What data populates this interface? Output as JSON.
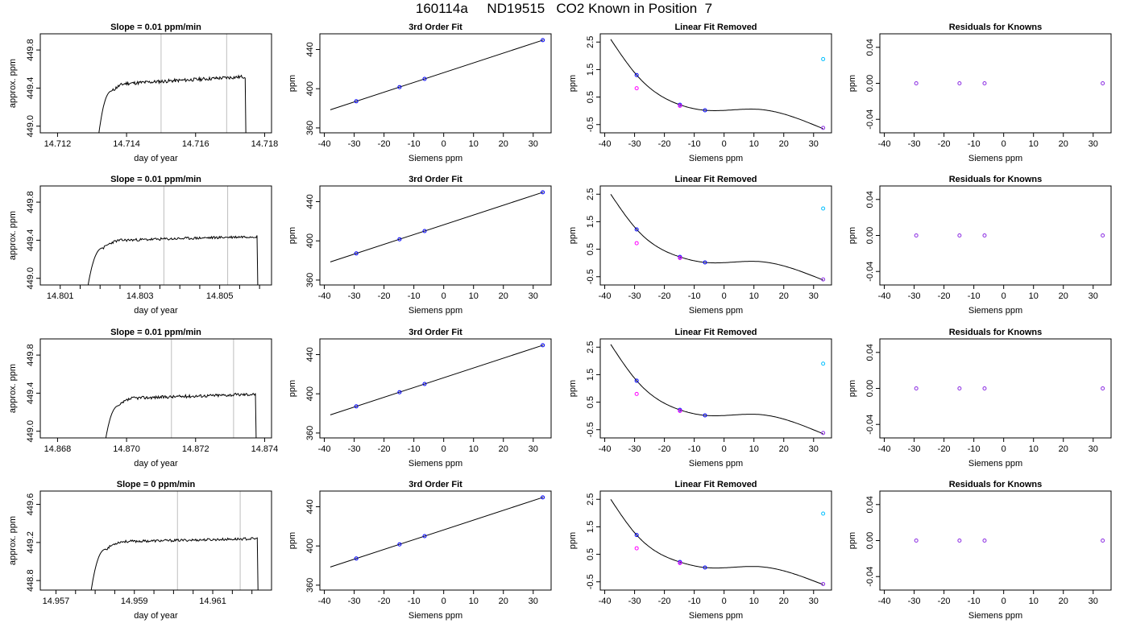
{
  "page": {
    "title": "160114a     ND19515   CO2 Known in Position  7"
  },
  "colors": {
    "line": "#000000",
    "frame": "#000000",
    "vline": "#bebebe",
    "point_blue": "#0000ff",
    "point_magenta": "#ff00ff",
    "point_cyan": "#00bfff",
    "point_purple": "#8a2be2"
  },
  "chart_data": [
    {
      "type": "line",
      "title": "Slope =  0.01  ppm/min",
      "xlabel": "day of year",
      "ylabel": "approx. ppm",
      "xlim": [
        14.7115,
        14.7182
      ],
      "ylim": [
        448.93,
        449.97
      ],
      "xticks": [
        14.712,
        14.714,
        14.716,
        14.718
      ],
      "xtick_labels": [
        "14.712",
        "14.714",
        "14.716",
        "14.718"
      ],
      "yticks": [
        449.0,
        449.4,
        449.8
      ],
      "ytick_labels": [
        "449.0",
        "449.4",
        "449.8"
      ],
      "vlines": [
        14.715,
        14.7169
      ],
      "trace": {
        "x0": 14.7132,
        "x1": 14.7175,
        "rise_from": 448.93,
        "plateau_start": 449.45,
        "plateau_end": 449.52,
        "noise": 0.018,
        "seed": 11
      }
    },
    {
      "type": "line",
      "title": "3rd Order Fit",
      "xlabel": "Siemens ppm",
      "ylabel": "ppm",
      "xlim": [
        -41.5,
        36
      ],
      "ylim": [
        355,
        456
      ],
      "xticks": [
        -40,
        -30,
        -20,
        -10,
        0,
        10,
        20,
        30
      ],
      "xtick_labels": [
        "-40",
        "-30",
        "-20",
        "-10",
        "0",
        "10",
        "20",
        "30"
      ],
      "yticks": [
        360,
        400,
        440
      ],
      "ytick_labels": [
        "360",
        "400",
        "440"
      ],
      "line": {
        "slope": 0.997,
        "intercept": 416.4,
        "x_from": -38,
        "x_to": 33.4
      },
      "points_x": [
        -29.3,
        -14.8,
        -6.4,
        33.2
      ]
    },
    {
      "type": "scatter",
      "title": "Linear Fit Removed",
      "xlabel": "Siemens ppm",
      "ylabel": "ppm",
      "xlim": [
        -41.5,
        36
      ],
      "ylim": [
        -0.8,
        2.8
      ],
      "xticks": [
        -40,
        -30,
        -20,
        -10,
        0,
        10,
        20,
        30
      ],
      "xtick_labels": [
        "-40",
        "-30",
        "-20",
        "-10",
        "0",
        "10",
        "20",
        "30"
      ],
      "yticks": [
        -0.5,
        0.5,
        1.5,
        2.5
      ],
      "ytick_labels": [
        "-0.5",
        "0.5",
        "1.5",
        "2.5"
      ],
      "curve_control": {
        "x": [
          -38,
          -29.3,
          -14.8,
          -6.4,
          12,
          33.2
        ],
        "y": [
          2.6,
          1.3,
          0.22,
          0.02,
          0.05,
          -0.65
        ]
      },
      "points": [
        {
          "x": -29.3,
          "y": 1.3,
          "color": "#0000ff"
        },
        {
          "x": -29.3,
          "y": 0.82,
          "color": "#ff00ff"
        },
        {
          "x": -14.8,
          "y": 0.22,
          "color": "#0000ff"
        },
        {
          "x": -14.8,
          "y": 0.18,
          "color": "#ff00ff"
        },
        {
          "x": -6.4,
          "y": 0.02,
          "color": "#0000ff"
        },
        {
          "x": 33.2,
          "y": 1.88,
          "color": "#00bfff"
        },
        {
          "x": 33.2,
          "y": -0.62,
          "color": "#8a2be2"
        }
      ]
    },
    {
      "type": "scatter",
      "title": "Residuals for Knowns",
      "xlabel": "Siemens ppm",
      "ylabel": "ppm",
      "xlim": [
        -41.5,
        36
      ],
      "ylim": [
        -0.055,
        0.055
      ],
      "xticks": [
        -40,
        -30,
        -20,
        -10,
        0,
        10,
        20,
        30
      ],
      "xtick_labels": [
        "-40",
        "-30",
        "-20",
        "-10",
        "0",
        "10",
        "20",
        "30"
      ],
      "yticks": [
        -0.04,
        0.0,
        0.04
      ],
      "ytick_labels": [
        "-0.04",
        "0.00",
        "0.04"
      ],
      "points_x": [
        -29.3,
        -14.8,
        -6.4,
        33.2
      ],
      "points_y": [
        0,
        0,
        0,
        0
      ]
    },
    {
      "type": "line",
      "title": "Slope =  0.01  ppm/min",
      "xlabel": "day of year",
      "ylabel": "approx. ppm",
      "xlim": [
        14.8005,
        14.8063
      ],
      "ylim": [
        448.93,
        449.97
      ],
      "xticks": [
        14.801,
        14.8015,
        14.802,
        14.8025,
        14.803,
        14.8035,
        14.804,
        14.8045,
        14.805,
        14.8055,
        14.806
      ],
      "xtick_labels": [
        "14.801",
        "",
        "",
        "",
        "14.803",
        "",
        "",
        "",
        "14.805",
        "",
        ""
      ],
      "yticks": [
        449.0,
        449.4,
        449.8
      ],
      "ytick_labels": [
        "449.0",
        "449.4",
        "449.8"
      ],
      "vlines": [
        14.8036,
        14.8052
      ],
      "trace": {
        "x0": 14.8017,
        "x1": 14.806,
        "rise_from": 448.93,
        "plateau_start": 449.4,
        "plateau_end": 449.44,
        "noise": 0.014,
        "seed": 23
      }
    },
    {
      "type": "line",
      "title": "3rd Order Fit",
      "xlabel": "Siemens ppm",
      "ylabel": "ppm",
      "xlim": [
        -41.5,
        36
      ],
      "ylim": [
        355,
        456
      ],
      "xticks": [
        -40,
        -30,
        -20,
        -10,
        0,
        10,
        20,
        30
      ],
      "xtick_labels": [
        "-40",
        "-30",
        "-20",
        "-10",
        "0",
        "10",
        "20",
        "30"
      ],
      "yticks": [
        360,
        400,
        440
      ],
      "ytick_labels": [
        "360",
        "400",
        "440"
      ],
      "line": {
        "slope": 0.997,
        "intercept": 416.4,
        "x_from": -38,
        "x_to": 33.4
      },
      "points_x": [
        -29.3,
        -14.8,
        -6.4,
        33.2
      ]
    },
    {
      "type": "scatter",
      "title": "Linear Fit Removed",
      "xlabel": "Siemens ppm",
      "ylabel": "ppm",
      "xlim": [
        -41.5,
        36
      ],
      "ylim": [
        -0.8,
        2.8
      ],
      "xticks": [
        -40,
        -30,
        -20,
        -10,
        0,
        10,
        20,
        30
      ],
      "xtick_labels": [
        "-40",
        "-30",
        "-20",
        "-10",
        "0",
        "10",
        "20",
        "30"
      ],
      "yticks": [
        -0.5,
        0.5,
        1.5,
        2.5
      ],
      "ytick_labels": [
        "-0.5",
        "0.5",
        "1.5",
        "2.5"
      ],
      "curve_control": {
        "x": [
          -38,
          -29.3,
          -14.8,
          -6.4,
          12,
          33.2
        ],
        "y": [
          2.5,
          1.22,
          0.22,
          0.02,
          0.05,
          -0.62
        ]
      },
      "points": [
        {
          "x": -29.3,
          "y": 1.22,
          "color": "#0000ff"
        },
        {
          "x": -29.3,
          "y": 0.72,
          "color": "#ff00ff"
        },
        {
          "x": -14.8,
          "y": 0.22,
          "color": "#0000ff"
        },
        {
          "x": -14.8,
          "y": 0.18,
          "color": "#ff00ff"
        },
        {
          "x": -6.4,
          "y": 0.02,
          "color": "#0000ff"
        },
        {
          "x": 33.2,
          "y": 1.98,
          "color": "#00bfff"
        },
        {
          "x": 33.2,
          "y": -0.6,
          "color": "#8a2be2"
        }
      ]
    },
    {
      "type": "scatter",
      "title": "Residuals for Knowns",
      "xlabel": "Siemens ppm",
      "ylabel": "ppm",
      "xlim": [
        -41.5,
        36
      ],
      "ylim": [
        -0.055,
        0.055
      ],
      "xticks": [
        -40,
        -30,
        -20,
        -10,
        0,
        10,
        20,
        30
      ],
      "xtick_labels": [
        "-40",
        "-30",
        "-20",
        "-10",
        "0",
        "10",
        "20",
        "30"
      ],
      "yticks": [
        -0.04,
        0.0,
        0.04
      ],
      "ytick_labels": [
        "-0.04",
        "0.00",
        "0.04"
      ],
      "points_x": [
        -29.3,
        -14.8,
        -6.4,
        33.2
      ],
      "points_y": [
        0,
        0,
        0,
        0
      ]
    },
    {
      "type": "line",
      "title": "Slope =  0.01  ppm/min",
      "xlabel": "day of year",
      "ylabel": "approx. ppm",
      "xlim": [
        14.8675,
        14.8742
      ],
      "ylim": [
        448.93,
        449.97
      ],
      "xticks": [
        14.868,
        14.87,
        14.872,
        14.874
      ],
      "xtick_labels": [
        "14.868",
        "14.870",
        "14.872",
        "14.874"
      ],
      "yticks": [
        449.0,
        449.4,
        449.8
      ],
      "ytick_labels": [
        "449.0",
        "449.4",
        "449.8"
      ],
      "vlines": [
        14.8713,
        14.8731
      ],
      "trace": {
        "x0": 14.8694,
        "x1": 14.8738,
        "rise_from": 448.93,
        "plateau_start": 449.35,
        "plateau_end": 449.39,
        "noise": 0.016,
        "seed": 37
      }
    },
    {
      "type": "line",
      "title": "3rd Order Fit",
      "xlabel": "Siemens ppm",
      "ylabel": "ppm",
      "xlim": [
        -41.5,
        36
      ],
      "ylim": [
        355,
        456
      ],
      "xticks": [
        -40,
        -30,
        -20,
        -10,
        0,
        10,
        20,
        30
      ],
      "xtick_labels": [
        "-40",
        "-30",
        "-20",
        "-10",
        "0",
        "10",
        "20",
        "30"
      ],
      "yticks": [
        360,
        400,
        440
      ],
      "ytick_labels": [
        "360",
        "400",
        "440"
      ],
      "line": {
        "slope": 0.997,
        "intercept": 416.4,
        "x_from": -38,
        "x_to": 33.4
      },
      "points_x": [
        -29.3,
        -14.8,
        -6.4,
        33.2
      ]
    },
    {
      "type": "scatter",
      "title": "Linear Fit Removed",
      "xlabel": "Siemens ppm",
      "ylabel": "ppm",
      "xlim": [
        -41.5,
        36
      ],
      "ylim": [
        -0.8,
        2.8
      ],
      "xticks": [
        -40,
        -30,
        -20,
        -10,
        0,
        10,
        20,
        30
      ],
      "xtick_labels": [
        "-40",
        "-30",
        "-20",
        "-10",
        "0",
        "10",
        "20",
        "30"
      ],
      "yticks": [
        -0.5,
        0.5,
        1.5,
        2.5
      ],
      "ytick_labels": [
        "-0.5",
        "0.5",
        "1.5",
        "2.5"
      ],
      "curve_control": {
        "x": [
          -38,
          -29.3,
          -14.8,
          -6.4,
          12,
          33.2
        ],
        "y": [
          2.6,
          1.28,
          0.22,
          0.02,
          0.05,
          -0.65
        ]
      },
      "points": [
        {
          "x": -29.3,
          "y": 1.28,
          "color": "#0000ff"
        },
        {
          "x": -29.3,
          "y": 0.8,
          "color": "#ff00ff"
        },
        {
          "x": -14.8,
          "y": 0.22,
          "color": "#0000ff"
        },
        {
          "x": -14.8,
          "y": 0.18,
          "color": "#ff00ff"
        },
        {
          "x": -6.4,
          "y": 0.02,
          "color": "#0000ff"
        },
        {
          "x": 33.2,
          "y": 1.9,
          "color": "#00bfff"
        },
        {
          "x": 33.2,
          "y": -0.62,
          "color": "#8a2be2"
        }
      ]
    },
    {
      "type": "scatter",
      "title": "Residuals for Knowns",
      "xlabel": "Siemens ppm",
      "ylabel": "ppm",
      "xlim": [
        -41.5,
        36
      ],
      "ylim": [
        -0.055,
        0.055
      ],
      "xticks": [
        -40,
        -30,
        -20,
        -10,
        0,
        10,
        20,
        30
      ],
      "xtick_labels": [
        "-40",
        "-30",
        "-20",
        "-10",
        "0",
        "10",
        "20",
        "30"
      ],
      "yticks": [
        -0.04,
        0.0,
        0.04
      ],
      "ytick_labels": [
        "-0.04",
        "0.00",
        "0.04"
      ],
      "points_x": [
        -29.3,
        -14.8,
        -6.4,
        33.2
      ],
      "points_y": [
        0,
        0,
        0,
        0
      ]
    },
    {
      "type": "line",
      "title": "Slope =  0  ppm/min",
      "xlabel": "day of year",
      "ylabel": "approx. ppm",
      "xlim": [
        14.9566,
        14.9625
      ],
      "ylim": [
        448.7,
        449.74
      ],
      "xticks": [
        14.957,
        14.9575,
        14.958,
        14.9585,
        14.959,
        14.9595,
        14.96,
        14.9605,
        14.961,
        14.9615,
        14.962
      ],
      "xtick_labels": [
        "14.957",
        "",
        "",
        "",
        "14.959",
        "",
        "",
        "",
        "14.961",
        "",
        ""
      ],
      "yticks": [
        448.8,
        449.2,
        449.6
      ],
      "ytick_labels": [
        "448.8",
        "449.2",
        "449.6"
      ],
      "vlines": [
        14.9601,
        14.9617
      ],
      "trace": {
        "x0": 14.9579,
        "x1": 14.9622,
        "rise_from": 448.7,
        "plateau_start": 449.21,
        "plateau_end": 449.24,
        "noise": 0.013,
        "seed": 53
      }
    },
    {
      "type": "line",
      "title": "3rd Order Fit",
      "xlabel": "Siemens ppm",
      "ylabel": "ppm",
      "xlim": [
        -41.5,
        36
      ],
      "ylim": [
        355,
        456
      ],
      "xticks": [
        -40,
        -30,
        -20,
        -10,
        0,
        10,
        20,
        30
      ],
      "xtick_labels": [
        "-40",
        "-30",
        "-20",
        "-10",
        "0",
        "10",
        "20",
        "30"
      ],
      "yticks": [
        360,
        400,
        440
      ],
      "ytick_labels": [
        "360",
        "400",
        "440"
      ],
      "line": {
        "slope": 0.997,
        "intercept": 416.4,
        "x_from": -38,
        "x_to": 33.4
      },
      "points_x": [
        -29.3,
        -14.8,
        -6.4,
        33.2
      ]
    },
    {
      "type": "scatter",
      "title": "Linear Fit Removed",
      "xlabel": "Siemens ppm",
      "ylabel": "ppm",
      "xlim": [
        -41.5,
        36
      ],
      "ylim": [
        -0.8,
        2.8
      ],
      "xticks": [
        -40,
        -30,
        -20,
        -10,
        0,
        10,
        20,
        30
      ],
      "xtick_labels": [
        "-40",
        "-30",
        "-20",
        "-10",
        "0",
        "10",
        "20",
        "30"
      ],
      "yticks": [
        -0.5,
        0.5,
        1.5,
        2.5
      ],
      "ytick_labels": [
        "-0.5",
        "0.5",
        "1.5",
        "2.5"
      ],
      "curve_control": {
        "x": [
          -38,
          -29.3,
          -14.8,
          -6.4,
          12,
          33.2
        ],
        "y": [
          2.5,
          1.2,
          0.22,
          0.02,
          0.05,
          -0.6
        ]
      },
      "points": [
        {
          "x": -29.3,
          "y": 1.2,
          "color": "#0000ff"
        },
        {
          "x": -29.3,
          "y": 0.72,
          "color": "#ff00ff"
        },
        {
          "x": -14.8,
          "y": 0.22,
          "color": "#0000ff"
        },
        {
          "x": -14.8,
          "y": 0.18,
          "color": "#ff00ff"
        },
        {
          "x": -6.4,
          "y": 0.02,
          "color": "#0000ff"
        },
        {
          "x": 33.2,
          "y": 1.98,
          "color": "#00bfff"
        },
        {
          "x": 33.2,
          "y": -0.58,
          "color": "#8a2be2"
        }
      ]
    },
    {
      "type": "scatter",
      "title": "Residuals for Knowns",
      "xlabel": "Siemens ppm",
      "ylabel": "ppm",
      "xlim": [
        -41.5,
        36
      ],
      "ylim": [
        -0.055,
        0.055
      ],
      "xticks": [
        -40,
        -30,
        -20,
        -10,
        0,
        10,
        20,
        30
      ],
      "xtick_labels": [
        "-40",
        "-30",
        "-20",
        "-10",
        "0",
        "10",
        "20",
        "30"
      ],
      "yticks": [
        -0.04,
        0.0,
        0.04
      ],
      "ytick_labels": [
        "-0.04",
        "0.00",
        "0.04"
      ],
      "points_x": [
        -29.3,
        -14.8,
        -6.4,
        33.2
      ],
      "points_y": [
        0,
        0,
        0,
        0
      ]
    }
  ]
}
